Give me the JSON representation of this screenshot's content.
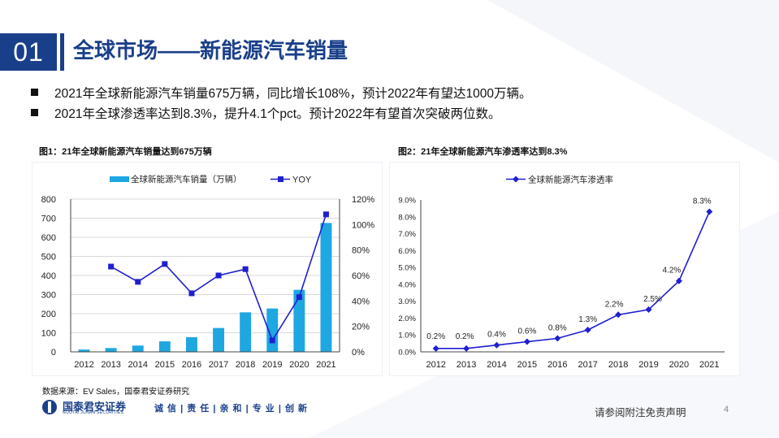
{
  "header": {
    "section_number": "01",
    "title": "全球市场——新能源汽车销量"
  },
  "bullets": [
    "2021年全球新能源汽车销量675万辆，同比增长108%，预计2022年有望达1000万辆。",
    "2021年全球渗透率达到8.3%，提升4.1个pct。预计2022年有望首次突破两位数。"
  ],
  "figures": {
    "fig1_caption": "图1：21年全球新能源汽车销量达到675万辆",
    "fig2_caption": "图2：21年全球新能源汽车渗透率达到8.3%"
  },
  "chart_data": [
    {
      "type": "bar+line",
      "categories": [
        "2012",
        "2013",
        "2014",
        "2015",
        "2016",
        "2017",
        "2018",
        "2019",
        "2020",
        "2021"
      ],
      "series": [
        {
          "name": "全球新能源汽车销量（万辆）",
          "type": "bar",
          "axis": "left",
          "values": [
            12,
            20,
            33,
            55,
            77,
            125,
            207,
            227,
            325,
            675
          ],
          "color": "#1ea7e1"
        },
        {
          "name": "YOY",
          "type": "line",
          "axis": "right",
          "values": [
            null,
            67,
            55,
            69,
            46,
            60,
            65,
            9,
            43,
            108
          ],
          "color": "#1f1fd0"
        }
      ],
      "y_left": {
        "min": 0,
        "max": 800,
        "ticks": [
          0,
          100,
          200,
          300,
          400,
          500,
          600,
          700,
          800
        ]
      },
      "y_right": {
        "min": 0,
        "max": 120,
        "ticks": [
          "0%",
          "20%",
          "40%",
          "60%",
          "80%",
          "100%",
          "120%"
        ]
      },
      "legend": "top",
      "grid": true
    },
    {
      "type": "line",
      "categories": [
        "2012",
        "2013",
        "2014",
        "2015",
        "2016",
        "2017",
        "2018",
        "2019",
        "2020",
        "2021"
      ],
      "series": [
        {
          "name": "全球新能源汽车渗透率",
          "values": [
            0.2,
            0.2,
            0.4,
            0.6,
            0.8,
            1.3,
            2.2,
            2.5,
            4.2,
            8.3
          ],
          "color": "#1f1fd0"
        }
      ],
      "data_labels": [
        "0.2%",
        "0.2%",
        "0.4%",
        "0.6%",
        "0.8%",
        "1.3%",
        "2.2%",
        "2.5%",
        "4.2%",
        "8.3%"
      ],
      "y": {
        "min": 0,
        "max": 9,
        "ticks": [
          "0.0%",
          "1.0%",
          "2.0%",
          "3.0%",
          "4.0%",
          "5.0%",
          "6.0%",
          "7.0%",
          "8.0%",
          "9.0%"
        ]
      },
      "legend": "top",
      "grid": false
    }
  ],
  "footer": {
    "source": "数据来源：EV Sales，国泰君安证券研究",
    "logo_cn": "国泰君安证券",
    "logo_en": "GUOTAI JUNAN SECURITIES",
    "slogan": "诚 信 | 责 任 | 亲 和 | 专 业 | 创 新",
    "disclaimer": "请参阅附注免责声明",
    "page_number": "4"
  },
  "colors": {
    "brand": "#1a3f8a",
    "bar": "#1ea7e1",
    "line": "#1f1fd0"
  }
}
